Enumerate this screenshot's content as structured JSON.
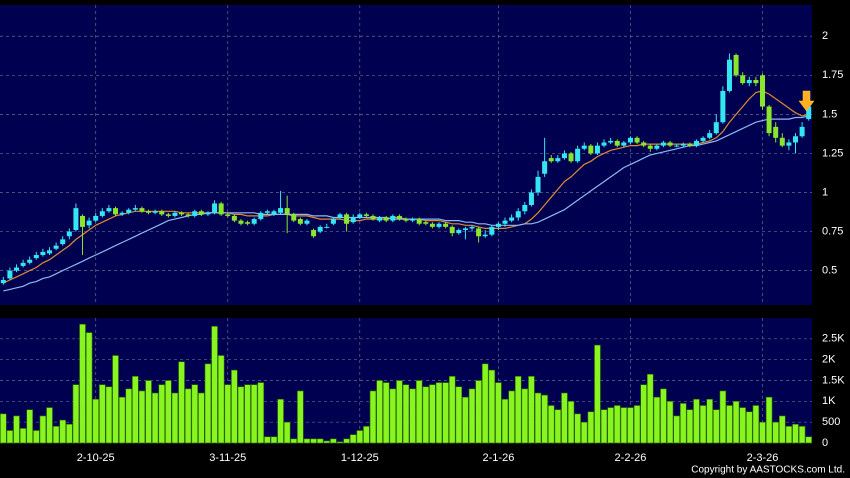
{
  "chart_data": [
    {
      "type": "candlestick",
      "open": [
        0.42,
        0.45,
        0.5,
        0.53,
        0.55,
        0.58,
        0.6,
        0.61,
        0.64,
        0.67,
        0.72,
        0.76,
        0.85,
        0.79,
        0.82,
        0.85,
        0.88,
        0.9,
        0.86,
        0.87,
        0.89,
        0.9,
        0.88,
        0.87,
        0.88,
        0.86,
        0.85,
        0.87,
        0.86,
        0.85,
        0.88,
        0.86,
        0.87,
        0.93,
        0.86,
        0.85,
        0.82,
        0.81,
        0.8,
        0.83,
        0.87,
        0.86,
        0.87,
        0.9,
        0.86,
        0.83,
        0.8,
        0.76,
        0.75,
        0.78,
        0.8,
        0.84,
        0.86,
        0.81,
        0.84,
        0.86,
        0.85,
        0.82,
        0.84,
        0.82,
        0.85,
        0.83,
        0.82,
        0.83,
        0.81,
        0.8,
        0.78,
        0.8,
        0.78,
        0.74,
        0.76,
        0.77,
        0.77,
        0.72,
        0.73,
        0.78,
        0.8,
        0.82,
        0.84,
        0.88,
        0.92,
        1.0,
        1.12,
        1.22,
        1.2,
        1.22,
        1.25,
        1.2,
        1.28,
        1.3,
        1.25,
        1.3,
        1.32,
        1.33,
        1.3,
        1.32,
        1.35,
        1.32,
        1.3,
        1.28,
        1.3,
        1.32,
        1.3,
        1.3,
        1.31,
        1.3,
        1.33,
        1.35,
        1.38,
        1.45,
        1.65,
        1.88,
        1.75,
        1.7,
        1.72,
        1.75,
        1.55,
        1.42,
        1.35,
        1.3,
        1.32,
        1.36,
        1.47
      ],
      "high": [
        0.46,
        0.52,
        0.54,
        0.57,
        0.59,
        0.62,
        0.64,
        0.65,
        0.68,
        0.72,
        0.77,
        0.93,
        0.86,
        0.84,
        0.87,
        0.9,
        0.92,
        0.91,
        0.88,
        0.9,
        0.92,
        0.91,
        0.89,
        0.89,
        0.89,
        0.87,
        0.88,
        0.88,
        0.87,
        0.89,
        0.89,
        0.88,
        0.95,
        0.94,
        0.87,
        0.86,
        0.83,
        0.82,
        0.84,
        0.88,
        0.89,
        0.89,
        1.01,
        0.98,
        0.87,
        0.84,
        0.83,
        0.77,
        0.79,
        0.8,
        0.84,
        0.87,
        0.87,
        0.86,
        0.87,
        0.87,
        0.86,
        0.85,
        0.85,
        0.86,
        0.86,
        0.84,
        0.84,
        0.84,
        0.82,
        0.81,
        0.81,
        0.81,
        0.79,
        0.77,
        0.78,
        0.79,
        0.78,
        0.76,
        0.79,
        0.81,
        0.84,
        0.86,
        0.9,
        0.94,
        1.02,
        1.14,
        1.35,
        1.24,
        1.24,
        1.27,
        1.26,
        1.3,
        1.32,
        1.31,
        1.32,
        1.34,
        1.35,
        1.34,
        1.33,
        1.36,
        1.36,
        1.33,
        1.31,
        1.31,
        1.33,
        1.33,
        1.31,
        1.32,
        1.32,
        1.34,
        1.36,
        1.4,
        1.5,
        1.68,
        1.89,
        1.89,
        1.77,
        1.74,
        1.74,
        1.76,
        1.56,
        1.45,
        1.38,
        1.34,
        1.38,
        1.45,
        1.6
      ],
      "low": [
        0.41,
        0.44,
        0.49,
        0.52,
        0.54,
        0.57,
        0.59,
        0.6,
        0.63,
        0.66,
        0.7,
        0.75,
        0.6,
        0.77,
        0.81,
        0.84,
        0.87,
        0.85,
        0.85,
        0.86,
        0.88,
        0.87,
        0.86,
        0.86,
        0.85,
        0.84,
        0.84,
        0.85,
        0.84,
        0.84,
        0.85,
        0.85,
        0.86,
        0.85,
        0.84,
        0.81,
        0.79,
        0.79,
        0.79,
        0.82,
        0.86,
        0.85,
        0.86,
        0.74,
        0.81,
        0.79,
        0.79,
        0.71,
        0.74,
        0.77,
        0.79,
        0.83,
        0.75,
        0.8,
        0.83,
        0.84,
        0.82,
        0.81,
        0.81,
        0.81,
        0.82,
        0.81,
        0.81,
        0.79,
        0.79,
        0.77,
        0.77,
        0.77,
        0.72,
        0.73,
        0.7,
        0.75,
        0.68,
        0.71,
        0.72,
        0.76,
        0.78,
        0.81,
        0.82,
        0.86,
        0.91,
        0.98,
        1.1,
        1.19,
        1.19,
        1.21,
        1.19,
        1.19,
        1.27,
        1.24,
        1.24,
        1.29,
        1.31,
        1.29,
        1.29,
        1.31,
        1.31,
        1.29,
        1.26,
        1.27,
        1.29,
        1.29,
        1.29,
        1.29,
        1.29,
        1.29,
        1.32,
        1.34,
        1.37,
        1.44,
        1.64,
        1.74,
        1.69,
        1.68,
        1.68,
        1.53,
        1.36,
        1.32,
        1.29,
        1.27,
        1.25,
        1.35,
        1.46
      ],
      "close": [
        0.44,
        0.5,
        0.52,
        0.55,
        0.57,
        0.6,
        0.62,
        0.63,
        0.66,
        0.7,
        0.75,
        0.9,
        0.78,
        0.82,
        0.85,
        0.88,
        0.9,
        0.86,
        0.87,
        0.89,
        0.9,
        0.88,
        0.87,
        0.88,
        0.86,
        0.85,
        0.87,
        0.86,
        0.85,
        0.88,
        0.86,
        0.87,
        0.93,
        0.86,
        0.85,
        0.82,
        0.8,
        0.8,
        0.83,
        0.87,
        0.88,
        0.88,
        0.9,
        0.86,
        0.82,
        0.8,
        0.82,
        0.72,
        0.78,
        0.78,
        0.83,
        0.86,
        0.8,
        0.84,
        0.86,
        0.85,
        0.83,
        0.84,
        0.82,
        0.85,
        0.83,
        0.82,
        0.83,
        0.8,
        0.8,
        0.78,
        0.8,
        0.78,
        0.74,
        0.76,
        0.77,
        0.78,
        0.72,
        0.73,
        0.78,
        0.8,
        0.82,
        0.84,
        0.88,
        0.92,
        1.0,
        1.1,
        1.2,
        1.2,
        1.22,
        1.25,
        1.2,
        1.28,
        1.3,
        1.25,
        1.3,
        1.32,
        1.33,
        1.3,
        1.32,
        1.35,
        1.32,
        1.3,
        1.28,
        1.3,
        1.32,
        1.3,
        1.3,
        1.31,
        1.3,
        1.33,
        1.35,
        1.38,
        1.45,
        1.65,
        1.85,
        1.75,
        1.7,
        1.72,
        1.7,
        1.55,
        1.38,
        1.35,
        1.3,
        1.32,
        1.36,
        1.42,
        1.55
      ],
      "up_color": "#33e6f2",
      "down_color": "#8ae62c",
      "series": [
        {
          "color": "#e08a2e",
          "values": [
            0.42,
            0.44,
            0.46,
            0.48,
            0.5,
            0.52,
            0.55,
            0.57,
            0.6,
            0.63,
            0.66,
            0.7,
            0.73,
            0.76,
            0.79,
            0.81,
            0.83,
            0.85,
            0.86,
            0.87,
            0.88,
            0.88,
            0.88,
            0.88,
            0.88,
            0.88,
            0.88,
            0.87,
            0.87,
            0.87,
            0.87,
            0.87,
            0.87,
            0.87,
            0.87,
            0.86,
            0.86,
            0.85,
            0.85,
            0.85,
            0.85,
            0.86,
            0.86,
            0.86,
            0.85,
            0.85,
            0.85,
            0.84,
            0.83,
            0.83,
            0.83,
            0.83,
            0.82,
            0.82,
            0.82,
            0.83,
            0.83,
            0.83,
            0.83,
            0.84,
            0.84,
            0.83,
            0.83,
            0.83,
            0.82,
            0.82,
            0.82,
            0.81,
            0.8,
            0.8,
            0.79,
            0.79,
            0.78,
            0.77,
            0.77,
            0.77,
            0.77,
            0.78,
            0.79,
            0.8,
            0.83,
            0.87,
            0.92,
            0.97,
            1.02,
            1.07,
            1.1,
            1.14,
            1.18,
            1.2,
            1.23,
            1.25,
            1.27,
            1.28,
            1.29,
            1.3,
            1.3,
            1.31,
            1.31,
            1.31,
            1.31,
            1.31,
            1.31,
            1.31,
            1.31,
            1.31,
            1.32,
            1.33,
            1.35,
            1.39,
            1.45,
            1.5,
            1.55,
            1.6,
            1.64,
            1.65,
            1.63,
            1.6,
            1.57,
            1.54,
            1.51,
            1.49,
            1.5
          ]
        },
        {
          "color": "#8fb8ee",
          "values": [
            0.37,
            0.38,
            0.39,
            0.4,
            0.42,
            0.43,
            0.45,
            0.46,
            0.48,
            0.5,
            0.52,
            0.54,
            0.56,
            0.58,
            0.6,
            0.62,
            0.64,
            0.66,
            0.68,
            0.7,
            0.72,
            0.74,
            0.76,
            0.78,
            0.8,
            0.82,
            0.83,
            0.84,
            0.85,
            0.86,
            0.86,
            0.87,
            0.87,
            0.87,
            0.87,
            0.87,
            0.87,
            0.87,
            0.87,
            0.86,
            0.86,
            0.86,
            0.86,
            0.86,
            0.86,
            0.86,
            0.86,
            0.85,
            0.85,
            0.85,
            0.84,
            0.84,
            0.84,
            0.84,
            0.84,
            0.84,
            0.84,
            0.84,
            0.84,
            0.83,
            0.83,
            0.83,
            0.83,
            0.83,
            0.83,
            0.83,
            0.83,
            0.82,
            0.82,
            0.82,
            0.81,
            0.81,
            0.8,
            0.8,
            0.79,
            0.79,
            0.79,
            0.79,
            0.79,
            0.8,
            0.8,
            0.81,
            0.83,
            0.85,
            0.87,
            0.89,
            0.92,
            0.95,
            0.98,
            1.01,
            1.04,
            1.07,
            1.1,
            1.13,
            1.16,
            1.18,
            1.2,
            1.22,
            1.24,
            1.25,
            1.26,
            1.27,
            1.28,
            1.29,
            1.3,
            1.3,
            1.31,
            1.32,
            1.33,
            1.35,
            1.37,
            1.39,
            1.41,
            1.43,
            1.45,
            1.46,
            1.47,
            1.47,
            1.47,
            1.47,
            1.48,
            1.48,
            1.49
          ]
        }
      ],
      "xlim": [
        -0.5,
        122.5
      ],
      "ylim": [
        0.28,
        2.2
      ],
      "yticks": [
        0.5,
        0.75,
        1,
        1.25,
        1.5,
        1.75,
        2
      ],
      "grid": true
    },
    {
      "type": "bar",
      "values": [
        700,
        300,
        650,
        350,
        800,
        300,
        650,
        850,
        400,
        550,
        450,
        1400,
        2850,
        2650,
        1050,
        1400,
        1350,
        2100,
        1100,
        1300,
        1600,
        1250,
        1500,
        1200,
        1400,
        1500,
        1200,
        1950,
        1300,
        1400,
        1200,
        1900,
        2800,
        2100,
        1400,
        1750,
        1350,
        1400,
        1400,
        1450,
        150,
        150,
        1050,
        500,
        100,
        1250,
        100,
        100,
        100,
        50,
        100,
        30,
        100,
        200,
        300,
        400,
        1250,
        1500,
        1450,
        1300,
        1500,
        1400,
        1300,
        1500,
        1350,
        1400,
        1450,
        1450,
        1600,
        1350,
        1100,
        1300,
        1500,
        1900,
        1750,
        1450,
        1050,
        1250,
        1600,
        1300,
        1600,
        1200,
        1150,
        900,
        800,
        1200,
        1000,
        700,
        500,
        750,
        2350,
        800,
        850,
        900,
        850,
        850,
        900,
        1400,
        1650,
        1100,
        1300,
        1000,
        650,
        950,
        800,
        1050,
        900,
        1050,
        800,
        1250,
        900,
        1000,
        850,
        750,
        900,
        500,
        1100,
        500,
        650,
        400,
        450,
        400,
        150
      ],
      "color": "#88f520",
      "xlim": [
        -0.5,
        122.5
      ],
      "xticks": [
        {
          "value": 14,
          "label": "2-10-25"
        },
        {
          "value": 34,
          "label": "3-11-25"
        },
        {
          "value": 54,
          "label": "1-12-25"
        },
        {
          "value": 75,
          "label": "2-1-26"
        },
        {
          "value": 95,
          "label": "2-2-26"
        },
        {
          "value": 115,
          "label": "2-3-26"
        }
      ],
      "ylim": [
        0,
        3000
      ],
      "yticks": [
        0,
        500,
        {
          "value": 1000,
          "label": "1K"
        },
        {
          "value": 1500,
          "label": "1.5K"
        },
        {
          "value": 2000,
          "label": "2K"
        },
        {
          "value": 2500,
          "label": "2.5K"
        }
      ],
      "grid": true
    }
  ],
  "footer": "Copyright by AASTOCKS.com Ltd."
}
